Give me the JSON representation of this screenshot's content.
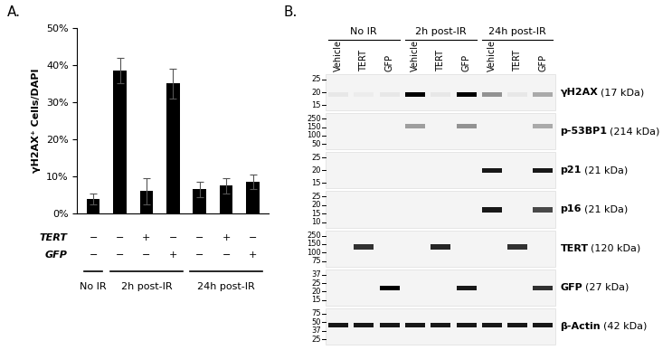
{
  "panel_labels": [
    "A.",
    "B."
  ],
  "chart_data": {
    "type": "bar",
    "categories": [
      null,
      null,
      null,
      null,
      null,
      null,
      null
    ],
    "values": [
      4,
      38.5,
      6,
      35,
      6.5,
      7.5,
      8.5
    ],
    "errors": [
      1.5,
      3.5,
      3.5,
      4,
      2,
      2,
      2
    ],
    "color": "#000000",
    "ylabel": "γH2AX⁺ Cells/DAPI",
    "ylim": [
      0,
      50
    ],
    "yticks": [
      {
        "value": 0,
        "label": "0%"
      },
      {
        "value": 10,
        "label": "10%"
      },
      {
        "value": 20,
        "label": "20%"
      },
      {
        "value": 30,
        "label": "30%"
      },
      {
        "value": 40,
        "label": "40%"
      },
      {
        "value": 50,
        "label": "50%"
      }
    ],
    "grid": false,
    "rows": [
      {
        "name": "TERT",
        "marks": [
          "−",
          "−",
          "+",
          "−",
          "−",
          "+",
          "−"
        ]
      },
      {
        "name": "GFP",
        "marks": [
          "−",
          "−",
          "−",
          "+",
          "−",
          "−",
          "+"
        ]
      }
    ],
    "groups": [
      {
        "label": "No IR",
        "first": 0,
        "last": 0
      },
      {
        "label": "2h post-IR",
        "first": 1,
        "last": 3
      },
      {
        "label": "24h post-IR",
        "first": 4,
        "last": 6
      }
    ]
  },
  "blot": {
    "groups": [
      {
        "label": "No IR",
        "lanes": [
          "Vehicle",
          "TERT",
          "GFP"
        ]
      },
      {
        "label": "2h post-IR",
        "lanes": [
          "Vehicle",
          "TERT",
          "GFP"
        ]
      },
      {
        "label": "24h post-IR",
        "lanes": [
          "Vehicle",
          "TERT",
          "GFP"
        ]
      }
    ],
    "rows": [
      {
        "name": "γH2AX",
        "size": "(17 kDa)",
        "markers": [
          25,
          20,
          15
        ],
        "band_kda": 19,
        "intensities": [
          0.05,
          0.03,
          0.05,
          1.0,
          0.05,
          1.0,
          0.4,
          0.05,
          0.3
        ]
      },
      {
        "name": "p-53BP1",
        "size": "(214 kDa)",
        "markers": [
          250,
          150,
          100,
          50
        ],
        "band_kda": 160,
        "intensities": [
          0,
          0,
          0,
          0.35,
          0,
          0.4,
          0,
          0,
          0.3
        ]
      },
      {
        "name": "p21",
        "size": "(21 kDa)",
        "markers": [
          25,
          20,
          15
        ],
        "band_kda": 20,
        "intensities": [
          0,
          0,
          0,
          0,
          0,
          0,
          0.9,
          0,
          0.9
        ]
      },
      {
        "name": "p16",
        "size": "(21 kDa)",
        "markers": [
          25,
          20,
          15,
          10
        ],
        "band_kda": 17,
        "intensities": [
          0,
          0,
          0,
          0,
          0,
          0,
          0.9,
          0,
          0.7
        ]
      },
      {
        "name": "TERT",
        "size": "(120 kDa)",
        "markers": [
          250,
          150,
          100,
          75
        ],
        "band_kda": 130,
        "intensities": [
          0,
          0.8,
          0,
          0,
          0.85,
          0,
          0,
          0.8,
          0
        ]
      },
      {
        "name": "GFP",
        "size": "(27 kDa)",
        "markers": [
          37,
          25,
          20,
          15
        ],
        "band_kda": 22,
        "intensities": [
          0,
          0,
          1.0,
          0,
          0,
          0.9,
          0,
          0,
          0.8
        ]
      },
      {
        "name": "β-Actin",
        "size": "(42 kDa)",
        "markers": [
          75,
          50,
          37,
          25
        ],
        "band_kda": 45,
        "intensities": [
          0.9,
          0.9,
          0.9,
          0.9,
          0.9,
          0.9,
          0.9,
          0.9,
          0.9
        ]
      }
    ]
  }
}
